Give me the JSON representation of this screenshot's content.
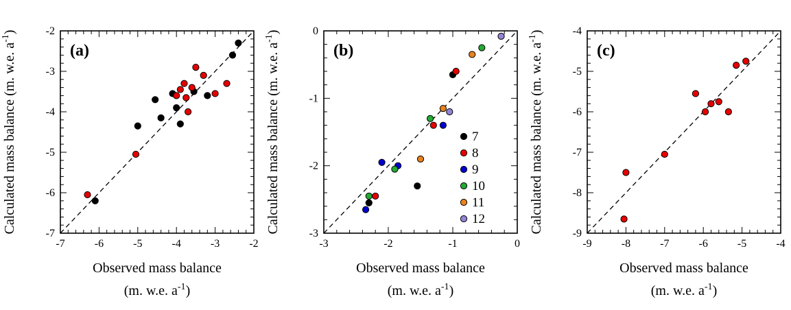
{
  "figure": {
    "background": "#ffffff",
    "x_axis_title": "Observed mass balance",
    "unit_line": {
      "pre": "(m. w.e. a",
      "sup": "-1",
      "post": ")"
    },
    "y_axis_title": {
      "pre": "Calculated mass balance (m. w.e. a",
      "sup": "-1",
      "post": ")"
    }
  },
  "chart_data": [
    {
      "type": "scatter",
      "panel": "(a)",
      "xlabel": "Observed mass balance",
      "ylabel": "Calculated mass balance (m. w.e. a-1)",
      "xlim": [
        -7,
        -2
      ],
      "ylim": [
        -7,
        -2
      ],
      "xticks": [
        -7,
        -6,
        -5,
        -4,
        -3,
        -2
      ],
      "yticks": [
        -7,
        -6,
        -5,
        -4,
        -3,
        -2
      ],
      "minor_step": 0.2,
      "identity_line": true,
      "series": [
        {
          "name": "black",
          "color": "#000000",
          "points": [
            [
              -6.1,
              -6.2
            ],
            [
              -5.0,
              -4.35
            ],
            [
              -4.55,
              -3.7
            ],
            [
              -4.4,
              -4.15
            ],
            [
              -4.1,
              -3.55
            ],
            [
              -4.0,
              -3.9
            ],
            [
              -3.9,
              -4.3
            ],
            [
              -3.55,
              -3.5
            ],
            [
              -3.2,
              -3.6
            ],
            [
              -2.55,
              -2.6
            ],
            [
              -2.4,
              -2.3
            ]
          ]
        },
        {
          "name": "red",
          "color": "#e60000",
          "points": [
            [
              -6.3,
              -6.05
            ],
            [
              -5.05,
              -5.05
            ],
            [
              -4.0,
              -3.6
            ],
            [
              -3.9,
              -3.45
            ],
            [
              -3.8,
              -3.3
            ],
            [
              -3.75,
              -3.65
            ],
            [
              -3.7,
              -4.0
            ],
            [
              -3.6,
              -3.4
            ],
            [
              -3.5,
              -2.9
            ],
            [
              -3.3,
              -3.1
            ],
            [
              -3.0,
              -3.55
            ],
            [
              -2.7,
              -3.3
            ]
          ]
        }
      ]
    },
    {
      "type": "scatter",
      "panel": "(b)",
      "xlabel": "Observed mass balance",
      "ylabel": "Calculated mass balance (m. w.e. a-1)",
      "xlim": [
        -3,
        0
      ],
      "ylim": [
        -3,
        0
      ],
      "xticks": [
        -3,
        -2,
        -1,
        0
      ],
      "yticks": [
        -3,
        -2,
        -1,
        0
      ],
      "minor_step": 0.2,
      "identity_line": true,
      "series": [
        {
          "name": "7",
          "color": "#000000",
          "points": [
            [
              -2.3,
              -2.55
            ],
            [
              -1.55,
              -2.3
            ],
            [
              -1.0,
              -0.65
            ]
          ]
        },
        {
          "name": "8",
          "color": "#e60000",
          "points": [
            [
              -2.2,
              -2.45
            ],
            [
              -1.3,
              -1.4
            ],
            [
              -0.95,
              -0.6
            ]
          ]
        },
        {
          "name": "9",
          "color": "#0000d0",
          "points": [
            [
              -2.35,
              -2.65
            ],
            [
              -2.1,
              -1.95
            ],
            [
              -1.85,
              -2.0
            ],
            [
              -1.15,
              -1.4
            ]
          ]
        },
        {
          "name": "10",
          "color": "#22aa33",
          "points": [
            [
              -2.3,
              -2.45
            ],
            [
              -1.9,
              -2.05
            ],
            [
              -1.35,
              -1.3
            ],
            [
              -0.55,
              -0.25
            ]
          ]
        },
        {
          "name": "11",
          "color": "#e8821e",
          "points": [
            [
              -1.5,
              -1.9
            ],
            [
              -1.15,
              -1.15
            ],
            [
              -0.7,
              -0.35
            ]
          ]
        },
        {
          "name": "12",
          "color": "#9583d6",
          "points": [
            [
              -1.05,
              -1.2
            ],
            [
              -0.25,
              -0.08
            ]
          ]
        }
      ],
      "legend": [
        {
          "label": "7",
          "color": "#000000"
        },
        {
          "label": "8",
          "color": "#e60000"
        },
        {
          "label": "9",
          "color": "#0000d0"
        },
        {
          "label": "10",
          "color": "#22aa33"
        },
        {
          "label": "11",
          "color": "#e8821e"
        },
        {
          "label": "12",
          "color": "#9583d6"
        }
      ]
    },
    {
      "type": "scatter",
      "panel": "(c)",
      "xlabel": "Observed mass balance",
      "ylabel": "Calculated mass balance (m. w.e. a-1)",
      "xlim": [
        -9,
        -4
      ],
      "ylim": [
        -9,
        -4
      ],
      "xticks": [
        -9,
        -8,
        -7,
        -6,
        -5,
        -4
      ],
      "yticks": [
        -9,
        -8,
        -7,
        -6,
        -5,
        -4
      ],
      "minor_step": 0.2,
      "identity_line": true,
      "series": [
        {
          "name": "red",
          "color": "#e60000",
          "points": [
            [
              -8.05,
              -8.65
            ],
            [
              -8.0,
              -7.5
            ],
            [
              -7.0,
              -7.05
            ],
            [
              -6.2,
              -5.55
            ],
            [
              -5.95,
              -6.0
            ],
            [
              -5.8,
              -5.8
            ],
            [
              -5.6,
              -5.75
            ],
            [
              -5.35,
              -6.0
            ],
            [
              -5.15,
              -4.85
            ],
            [
              -4.9,
              -4.75
            ]
          ]
        }
      ]
    }
  ]
}
